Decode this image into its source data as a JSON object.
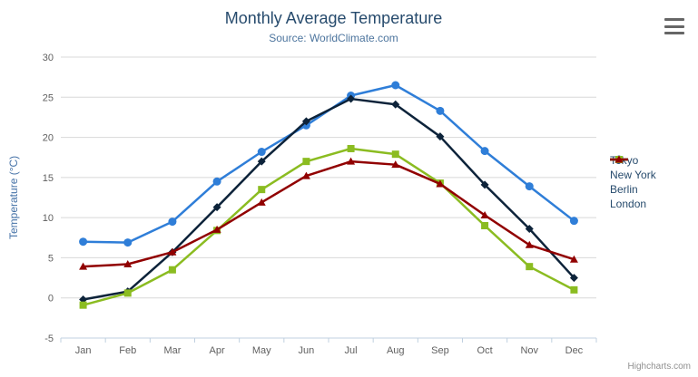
{
  "header": {
    "title": "Monthly Average Temperature",
    "subtitle": "Source: WorldClimate.com"
  },
  "export_menu": {
    "icon": "hamburger-menu-icon"
  },
  "credits": {
    "text": "Highcharts.com"
  },
  "chart_data": {
    "type": "line",
    "title": "Monthly Average Temperature",
    "subtitle": "Source: WorldClimate.com",
    "xlabel": "",
    "ylabel": "Temperature (°C)",
    "ylim": [
      -5,
      30
    ],
    "yticks": [
      30,
      25,
      20,
      15,
      10,
      5,
      0,
      -5
    ],
    "grid": true,
    "legend_position": "right",
    "categories": [
      "Jan",
      "Feb",
      "Mar",
      "Apr",
      "May",
      "Jun",
      "Jul",
      "Aug",
      "Sep",
      "Oct",
      "Nov",
      "Dec"
    ],
    "series": [
      {
        "name": "Tokyo",
        "color": "#2f7ed8",
        "marker": "circle",
        "values": [
          7.0,
          6.9,
          9.5,
          14.5,
          18.2,
          21.5,
          25.2,
          26.5,
          23.3,
          18.3,
          13.9,
          9.6
        ]
      },
      {
        "name": "New York",
        "color": "#0d233a",
        "marker": "diamond",
        "values": [
          -0.2,
          0.8,
          5.7,
          11.3,
          17.0,
          22.0,
          24.8,
          24.1,
          20.1,
          14.1,
          8.6,
          2.5
        ]
      },
      {
        "name": "Berlin",
        "color": "#8bbc21",
        "marker": "square",
        "values": [
          -0.9,
          0.6,
          3.5,
          8.4,
          13.5,
          17.0,
          18.6,
          17.9,
          14.3,
          9.0,
          3.9,
          1.0
        ]
      },
      {
        "name": "London",
        "color": "#910000",
        "marker": "triangle",
        "values": [
          3.9,
          4.2,
          5.7,
          8.5,
          11.9,
          15.2,
          17.0,
          16.6,
          14.2,
          10.3,
          6.6,
          4.8
        ]
      }
    ],
    "styles": {
      "grid_color": "#d8d8d8",
      "axis_line_color": "#c0d0e0",
      "tick_color": "#c0d0e0",
      "axis_label_color": "#606060",
      "title_color": "#274b6d",
      "subtitle_color": "#4d759e",
      "y_title_color": "#4572a7"
    }
  }
}
